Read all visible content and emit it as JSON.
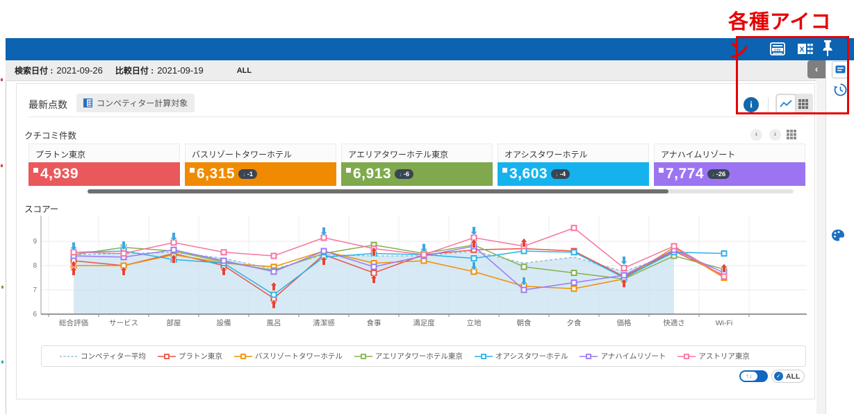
{
  "annotation": {
    "label": "各種アイコン",
    "color": "#e50000"
  },
  "header": {
    "bg_color": "#0b63b1",
    "icons": [
      {
        "name": "csv-export-icon",
        "label": "CSV"
      },
      {
        "name": "excel-export-icon",
        "label": "X"
      },
      {
        "name": "pin-icon"
      }
    ]
  },
  "filter_bar": {
    "search_date_label": "検索日付 :",
    "search_date": "2021-09-26",
    "compare_date_label": "比較日付 :",
    "compare_date": "2021-09-19",
    "scope": "ALL"
  },
  "toolbar": {
    "tab_label": "最新点数",
    "competitor_button_label": "コンペティター計算対象",
    "info_icon": "i",
    "view_modes": [
      "line-chart",
      "grid"
    ]
  },
  "reviews": {
    "title": "クチコミ件数",
    "nav": {
      "prev": "‹",
      "next": "›"
    },
    "cards": [
      {
        "name": "プラトン東京",
        "value": "4,939",
        "change": null,
        "color": "#e9595b"
      },
      {
        "name": "バスリゾートタワーホテル",
        "value": "6,315",
        "change": "-1",
        "color": "#f08a00"
      },
      {
        "name": "アエリアタワーホテル東京",
        "value": "6,913",
        "change": "-6",
        "color": "#7fa94c"
      },
      {
        "name": "オアシスタワーホテル",
        "value": "3,603",
        "change": "-4",
        "color": "#16b2ee"
      },
      {
        "name": "アナハイムリゾート",
        "value": "7,774",
        "change": "-26",
        "color": "#9c74f2"
      }
    ]
  },
  "chart_data": {
    "type": "line",
    "title": "スコアー",
    "categories": [
      "総合評価",
      "サービス",
      "部屋",
      "設備",
      "風呂",
      "清潔感",
      "食事",
      "満足度",
      "立地",
      "朝食",
      "夕食",
      "価格",
      "快適さ",
      "Wi-Fi"
    ],
    "ylim": [
      6,
      10
    ],
    "yticks": [
      6,
      7,
      8,
      9
    ],
    "grid": true,
    "legend_position": "bottom",
    "series": [
      {
        "name": "コンペティター平均",
        "color": "#90bfd8",
        "style": "dashed-area",
        "fill": "#c9e2f0",
        "values": [
          8.45,
          8.5,
          8.55,
          8.3,
          7.85,
          8.45,
          8.4,
          8.4,
          8.6,
          8.1,
          8.35,
          7.75,
          8.5,
          null
        ]
      },
      {
        "name": "プラトン東京",
        "color": "#e8534a",
        "style": "solid",
        "values": [
          8.2,
          8.0,
          8.5,
          8.0,
          6.65,
          8.45,
          7.7,
          8.45,
          8.65,
          8.7,
          8.6,
          7.55,
          8.6,
          7.6
        ]
      },
      {
        "name": "バスリゾートタワーホテル",
        "color": "#f09000",
        "style": "solid",
        "values": [
          8.0,
          8.0,
          8.45,
          8.1,
          7.95,
          8.6,
          8.1,
          8.2,
          7.75,
          7.15,
          7.05,
          7.45,
          8.75,
          7.5
        ]
      },
      {
        "name": "アエリアタワーホテル東京",
        "color": "#85b04e",
        "style": "solid",
        "values": [
          8.45,
          8.75,
          8.6,
          8.15,
          7.8,
          8.5,
          8.85,
          8.5,
          8.85,
          7.95,
          7.7,
          7.45,
          8.4,
          7.85
        ]
      },
      {
        "name": "オアシスタワーホテル",
        "color": "#29b2e8",
        "style": "solid",
        "values": [
          8.55,
          8.6,
          8.25,
          8.1,
          6.8,
          8.35,
          8.5,
          8.45,
          8.3,
          8.6,
          8.55,
          7.5,
          8.55,
          8.5
        ]
      },
      {
        "name": "アナハイムリゾート",
        "color": "#9b79f2",
        "style": "solid",
        "values": [
          8.4,
          8.35,
          8.65,
          8.2,
          7.75,
          8.6,
          7.95,
          8.4,
          8.8,
          7.0,
          7.3,
          7.6,
          8.65,
          7.7
        ]
      },
      {
        "name": "アストリア東京",
        "color": "#f8739f",
        "style": "solid",
        "values": [
          8.55,
          8.5,
          8.95,
          8.55,
          8.4,
          9.15,
          8.7,
          8.45,
          9.15,
          8.8,
          9.55,
          7.9,
          8.8,
          7.55
        ]
      }
    ],
    "change_arrows": [
      {
        "c": 0,
        "v": 8.78,
        "dir": "down"
      },
      {
        "c": 0,
        "v": 8.02,
        "dir": "up"
      },
      {
        "c": 0,
        "v": 7.78,
        "dir": "up"
      },
      {
        "c": 1,
        "v": 8.82,
        "dir": "down"
      },
      {
        "c": 1,
        "v": 7.78,
        "dir": "up"
      },
      {
        "c": 2,
        "v": 9.18,
        "dir": "down"
      },
      {
        "c": 2,
        "v": 8.28,
        "dir": "up"
      },
      {
        "c": 3,
        "v": 7.78,
        "dir": "up"
      },
      {
        "c": 4,
        "v": 6.42,
        "dir": "up"
      },
      {
        "c": 4,
        "v": 7.15,
        "dir": "up"
      },
      {
        "c": 5,
        "v": 9.4,
        "dir": "down"
      },
      {
        "c": 5,
        "v": 8.2,
        "dir": "up"
      },
      {
        "c": 6,
        "v": 8.58,
        "dir": "up"
      },
      {
        "c": 6,
        "v": 7.45,
        "dir": "up"
      },
      {
        "c": 7,
        "v": 8.72,
        "dir": "down"
      },
      {
        "c": 8,
        "v": 9.42,
        "dir": "down"
      },
      {
        "c": 8,
        "v": 8.92,
        "dir": "up"
      },
      {
        "c": 8,
        "v": 7.98,
        "dir": "down"
      },
      {
        "c": 9,
        "v": 8.95,
        "dir": "up"
      },
      {
        "c": 9,
        "v": 7.35,
        "dir": "down"
      },
      {
        "c": 11,
        "v": 8.2,
        "dir": "down"
      },
      {
        "c": 11,
        "v": 7.28,
        "dir": "up"
      },
      {
        "c": 13,
        "v": 7.9,
        "dir": "up"
      }
    ],
    "arrow_colors": {
      "up": "#e2453a",
      "down": "#3fa7dc"
    }
  },
  "footer": {
    "sort_toggle": {
      "up": "↑",
      "down": "↓"
    },
    "all_button": {
      "check": "✓",
      "label": "ALL"
    }
  },
  "sidebar": {
    "collapse_chevron": "‹",
    "icons": [
      "comment-icon",
      "history-icon",
      "palette-icon"
    ]
  }
}
